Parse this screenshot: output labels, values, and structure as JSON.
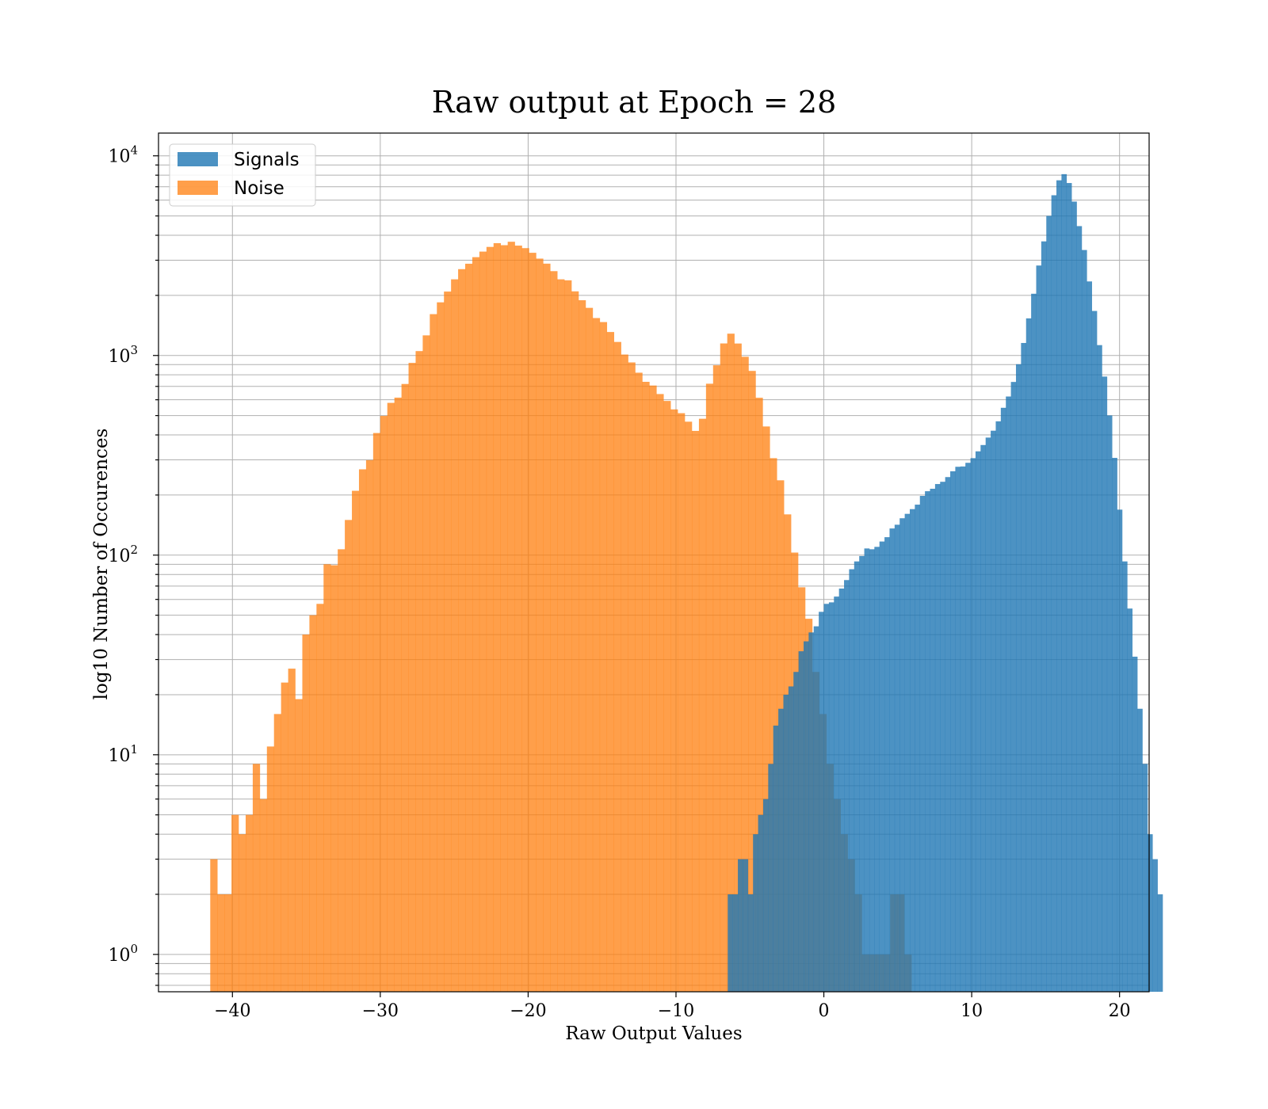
{
  "chart_data": {
    "type": "bar",
    "title": "Raw output at Epoch = 28",
    "xlabel": "Raw Output Values",
    "ylabel": "log10 Number of Occurences",
    "xlim": [
      -45,
      22
    ],
    "ylim": [
      0.65,
      13000
    ],
    "yscale": "log",
    "grid": true,
    "grid_minor": true,
    "legend_position": "top-left",
    "x_ticks": [
      -40,
      -30,
      -20,
      -10,
      0,
      10,
      20
    ],
    "x_tick_labels": [
      "−40",
      "−30",
      "−20",
      "−10",
      "0",
      "10",
      "20"
    ],
    "y_ticks": [
      {
        "value": 1,
        "base": "10",
        "exp": "0"
      },
      {
        "value": 10,
        "base": "10",
        "exp": "1"
      },
      {
        "value": 100,
        "base": "10",
        "exp": "2"
      },
      {
        "value": 1000,
        "base": "10",
        "exp": "3"
      },
      {
        "value": 10000,
        "base": "10",
        "exp": "4"
      }
    ],
    "series": [
      {
        "name": "Noise",
        "color": "#ff7f0e",
        "opacity": 0.75,
        "bin_start": -41.5,
        "bin_width": 0.479,
        "values": [
          3,
          2,
          2,
          5,
          4,
          5,
          9,
          6,
          11,
          16,
          23,
          27,
          19,
          40,
          50,
          57,
          90,
          89,
          107,
          150,
          210,
          269,
          299,
          409,
          498,
          579,
          615,
          720,
          918,
          1052,
          1261,
          1611,
          1846,
          2090,
          2407,
          2707,
          2881,
          3108,
          3314,
          3498,
          3652,
          3568,
          3712,
          3551,
          3449,
          3269,
          3056,
          2884,
          2645,
          2407,
          2379,
          2095,
          1891,
          1732,
          1540,
          1470,
          1311,
          1169,
          1011,
          923,
          820,
          738,
          707,
          641,
          592,
          537,
          514,
          466,
          419,
          482,
          722,
          893,
          1149,
          1286,
          1148,
          985,
          837,
          614,
          441,
          306,
          237,
          160,
          103,
          69,
          48,
          26,
          16,
          9,
          6,
          4,
          3,
          2,
          1,
          1,
          1,
          1,
          2,
          2,
          1
        ]
      },
      {
        "name": "Signals",
        "color": "#1f77b4",
        "opacity": 0.8,
        "bin_start": -6.5,
        "bin_width": 0.342,
        "values": [
          2,
          2,
          3,
          3,
          2,
          4,
          5,
          6,
          9,
          14,
          17,
          20,
          22,
          26,
          33,
          37,
          41,
          44,
          52,
          57,
          58,
          62,
          68,
          75,
          85,
          93,
          99,
          108,
          107,
          110,
          117,
          123,
          136,
          142,
          153,
          161,
          170,
          179,
          198,
          209,
          215,
          227,
          233,
          246,
          263,
          277,
          278,
          290,
          306,
          331,
          356,
          388,
          420,
          468,
          547,
          623,
          737,
          904,
          1155,
          1534,
          2038,
          2822,
          3728,
          5003,
          6347,
          7541,
          8094,
          7308,
          5900,
          4446,
          3375,
          2349,
          1671,
          1127,
          784,
          501,
          307,
          169,
          93,
          54,
          31,
          17,
          9,
          4,
          3,
          2
        ]
      }
    ]
  }
}
